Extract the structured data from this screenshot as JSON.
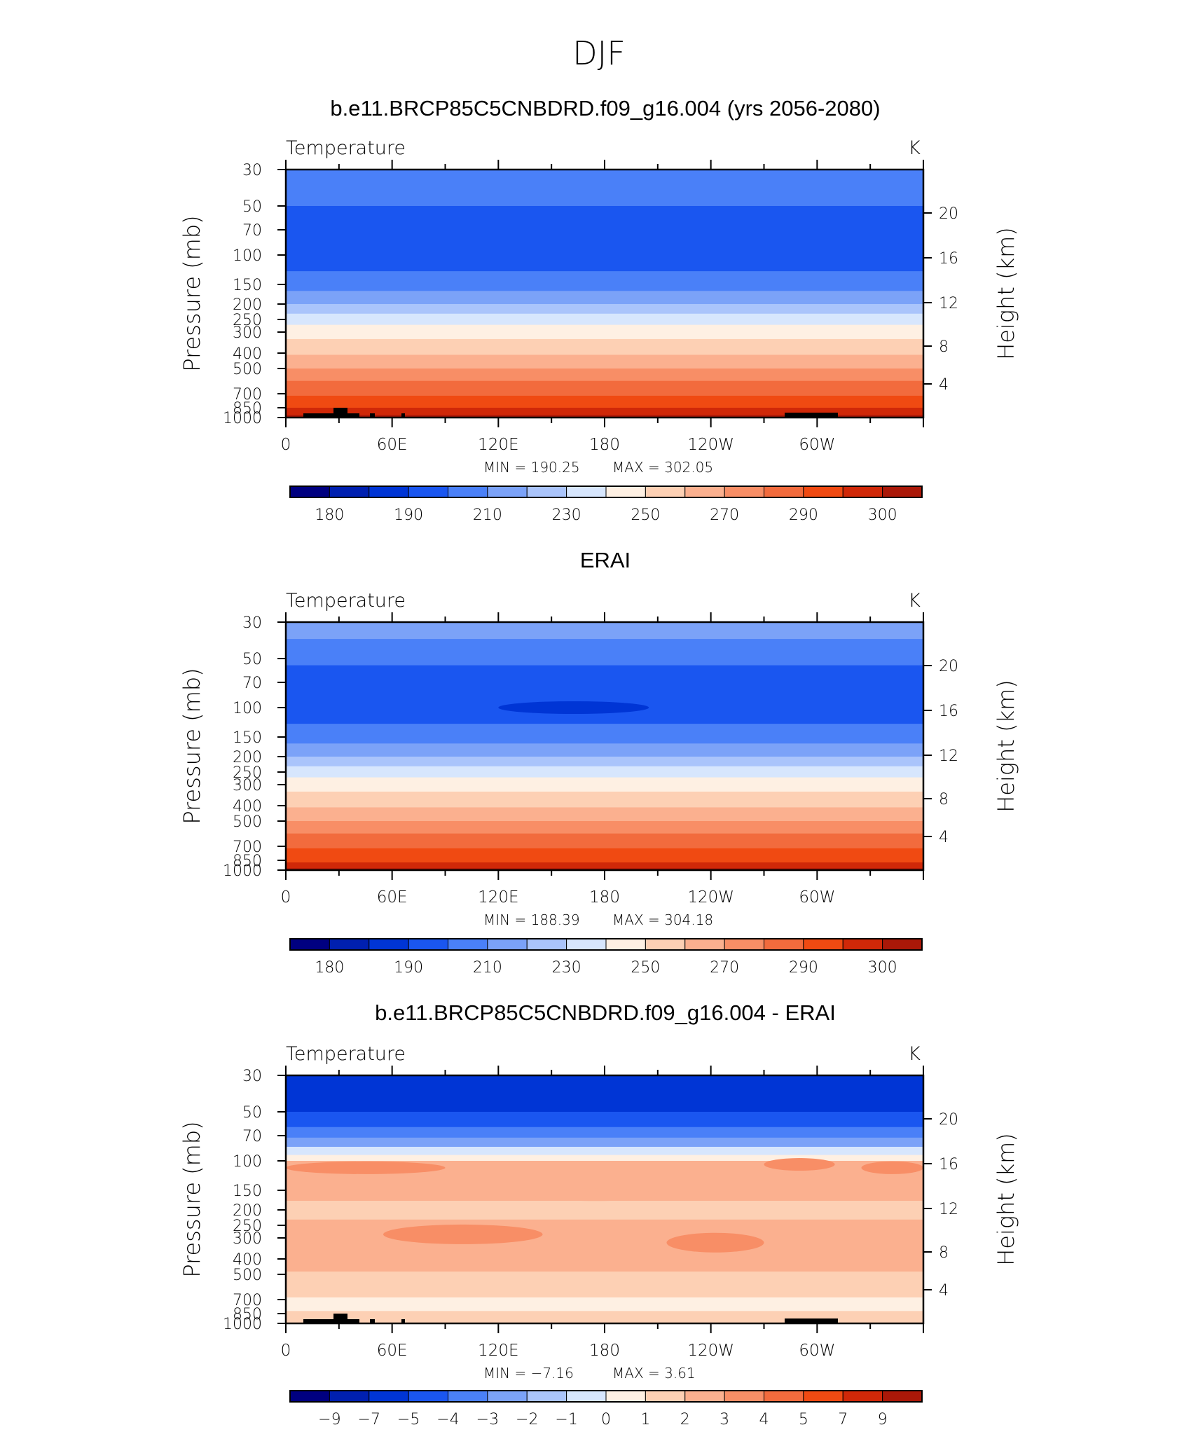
{
  "figure": {
    "title": "DJF"
  },
  "chart_data": [
    {
      "type": "heatmap",
      "title": "b.e11.BRCP85C5CNBDRD.f09_g16.004 (yrs 2056-2080)",
      "variable": "Temperature",
      "units": "K",
      "ylabel": "Pressure (mb)",
      "ylabel_right": "Height (km)",
      "x_ticks": [
        "0",
        "60E",
        "120E",
        "180",
        "120W",
        "60W"
      ],
      "y_ticks": [
        "30",
        "50",
        "70",
        "100",
        "150",
        "200",
        "250",
        "300",
        "400",
        "500",
        "700",
        "850",
        "1000"
      ],
      "y_right_ticks": [
        "20",
        "16",
        "12",
        "8",
        "4"
      ],
      "min_label": "MIN = 190.25",
      "max_label": "MAX = 302.05",
      "min": 190.25,
      "max": 302.05,
      "colorbar_labels": [
        "180",
        "190",
        "210",
        "230",
        "250",
        "270",
        "290",
        "300"
      ],
      "colorbar_colors": [
        "#000080",
        "#0020b0",
        "#0035d5",
        "#1a56f0",
        "#4a80f8",
        "#7ba2f8",
        "#aac4fb",
        "#d7e6fd",
        "#fef0e3",
        "#fdd0b4",
        "#fbb08f",
        "#f88e66",
        "#f26b3d",
        "#f04a12",
        "#d02808",
        "#aa1808"
      ],
      "bands": [
        {
          "p_top": 30,
          "p_bot": 50,
          "level": 4
        },
        {
          "p_top": 50,
          "p_bot": 125,
          "level": 3
        },
        {
          "p_top": 125,
          "p_bot": 165,
          "level": 4
        },
        {
          "p_top": 165,
          "p_bot": 200,
          "level": 5
        },
        {
          "p_top": 200,
          "p_bot": 230,
          "level": 6
        },
        {
          "p_top": 230,
          "p_bot": 270,
          "level": 7
        },
        {
          "p_top": 270,
          "p_bot": 330,
          "level": 8
        },
        {
          "p_top": 330,
          "p_bot": 410,
          "level": 9
        },
        {
          "p_top": 410,
          "p_bot": 500,
          "level": 10
        },
        {
          "p_top": 500,
          "p_bot": 590,
          "level": 11
        },
        {
          "p_top": 590,
          "p_bot": 720,
          "level": 12
        },
        {
          "p_top": 720,
          "p_bot": 850,
          "level": 13
        },
        {
          "p_top": 850,
          "p_bot": 960,
          "level": 14
        },
        {
          "p_top": 960,
          "p_bot": 1000,
          "level": 15
        }
      ],
      "blobs": [],
      "terrain": true
    },
    {
      "type": "heatmap",
      "title": "ERAI",
      "variable": "Temperature",
      "units": "K",
      "ylabel": "Pressure (mb)",
      "ylabel_right": "Height (km)",
      "x_ticks": [
        "0",
        "60E",
        "120E",
        "180",
        "120W",
        "60W"
      ],
      "y_ticks": [
        "30",
        "50",
        "70",
        "100",
        "150",
        "200",
        "250",
        "300",
        "400",
        "500",
        "700",
        "850",
        "1000"
      ],
      "y_right_ticks": [
        "20",
        "16",
        "12",
        "8",
        "4"
      ],
      "min_label": "MIN = 188.39",
      "max_label": "MAX = 304.18",
      "min": 188.39,
      "max": 304.18,
      "colorbar_labels": [
        "180",
        "190",
        "210",
        "230",
        "250",
        "270",
        "290",
        "300"
      ],
      "colorbar_colors": [
        "#000080",
        "#0020b0",
        "#0035d5",
        "#1a56f0",
        "#4a80f8",
        "#7ba2f8",
        "#aac4fb",
        "#d7e6fd",
        "#fef0e3",
        "#fdd0b4",
        "#fbb08f",
        "#f88e66",
        "#f26b3d",
        "#f04a12",
        "#d02808",
        "#aa1808"
      ],
      "bands": [
        {
          "p_top": 30,
          "p_bot": 38,
          "level": 5
        },
        {
          "p_top": 38,
          "p_bot": 55,
          "level": 4
        },
        {
          "p_top": 55,
          "p_bot": 125,
          "level": 3
        },
        {
          "p_top": 125,
          "p_bot": 165,
          "level": 4
        },
        {
          "p_top": 165,
          "p_bot": 200,
          "level": 5
        },
        {
          "p_top": 200,
          "p_bot": 230,
          "level": 6
        },
        {
          "p_top": 230,
          "p_bot": 270,
          "level": 7
        },
        {
          "p_top": 270,
          "p_bot": 330,
          "level": 8
        },
        {
          "p_top": 330,
          "p_bot": 410,
          "level": 9
        },
        {
          "p_top": 410,
          "p_bot": 500,
          "level": 10
        },
        {
          "p_top": 500,
          "p_bot": 590,
          "level": 11
        },
        {
          "p_top": 590,
          "p_bot": 720,
          "level": 12
        },
        {
          "p_top": 720,
          "p_bot": 880,
          "level": 13
        },
        {
          "p_top": 880,
          "p_bot": 970,
          "level": 14
        },
        {
          "p_top": 970,
          "p_bot": 1000,
          "level": 15
        }
      ],
      "blobs": [
        {
          "lon_start": 120,
          "lon_end": 205,
          "p": 100,
          "level": 2
        }
      ],
      "terrain": false
    },
    {
      "type": "heatmap",
      "title": "b.e11.BRCP85C5CNBDRD.f09_g16.004 - ERAI",
      "variable": "Temperature",
      "units": "K",
      "ylabel": "Pressure (mb)",
      "ylabel_right": "Height (km)",
      "x_ticks": [
        "0",
        "60E",
        "120E",
        "180",
        "120W",
        "60W"
      ],
      "y_ticks": [
        "30",
        "50",
        "70",
        "100",
        "150",
        "200",
        "250",
        "300",
        "400",
        "500",
        "700",
        "850",
        "1000"
      ],
      "y_right_ticks": [
        "20",
        "16",
        "12",
        "8",
        "4"
      ],
      "min_label": "MIN = −7.16",
      "max_label": "MAX = 3.61",
      "min": -7.16,
      "max": 3.61,
      "colorbar_labels": [
        "−9",
        "−7",
        "−5",
        "−4",
        "−3",
        "−2",
        "−1",
        "0",
        "1",
        "2",
        "3",
        "4",
        "5",
        "7",
        "9"
      ],
      "colorbar_colors": [
        "#000080",
        "#0020b0",
        "#0035d5",
        "#1a56f0",
        "#4a80f8",
        "#7ba2f8",
        "#aac4fb",
        "#d7e6fd",
        "#fef0e3",
        "#fdd0b4",
        "#fbb08f",
        "#f88e66",
        "#f26b3d",
        "#f04a12",
        "#d02808",
        "#aa1808"
      ],
      "bands": [
        {
          "p_top": 30,
          "p_bot": 50,
          "level": 2
        },
        {
          "p_top": 50,
          "p_bot": 62,
          "level": 3
        },
        {
          "p_top": 62,
          "p_bot": 72,
          "level": 4
        },
        {
          "p_top": 72,
          "p_bot": 82,
          "level": 5
        },
        {
          "p_top": 82,
          "p_bot": 92,
          "level": 7
        },
        {
          "p_top": 92,
          "p_bot": 100,
          "level": 8
        },
        {
          "p_top": 100,
          "p_bot": 175,
          "level": 10
        },
        {
          "p_top": 175,
          "p_bot": 230,
          "level": 9
        },
        {
          "p_top": 230,
          "p_bot": 480,
          "level": 10
        },
        {
          "p_top": 480,
          "p_bot": 680,
          "level": 9
        },
        {
          "p_top": 680,
          "p_bot": 820,
          "level": 8
        },
        {
          "p_top": 820,
          "p_bot": 1000,
          "level": 9
        }
      ],
      "blobs": [
        {
          "lon_start": 0,
          "lon_end": 90,
          "p": 110,
          "level": 11
        },
        {
          "lon_start": 325,
          "lon_end": 360,
          "p": 110,
          "level": 11
        },
        {
          "lon_start": 270,
          "lon_end": 310,
          "p": 105,
          "level": 11
        },
        {
          "lon_start": 55,
          "lon_end": 145,
          "p": 285,
          "level": 11
        },
        {
          "lon_start": 215,
          "lon_end": 270,
          "p": 320,
          "level": 11
        },
        {
          "lon_start": 140,
          "lon_end": 210,
          "p": 160,
          "level": 10
        }
      ],
      "terrain": true
    }
  ]
}
